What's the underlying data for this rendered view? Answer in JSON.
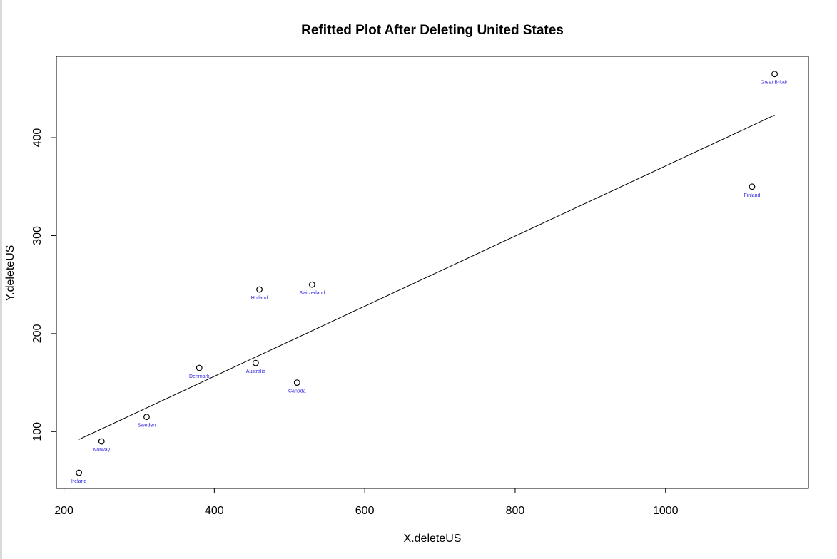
{
  "chart_data": {
    "type": "scatter",
    "title": "Refitted Plot After Deleting United States",
    "xlabel": "X.deleteUS",
    "ylabel": "Y.deleteUS",
    "xlim": [
      190,
      1190
    ],
    "ylim": [
      42,
      483
    ],
    "x_ticks": [
      200,
      400,
      600,
      800,
      1000
    ],
    "y_ticks": [
      100,
      200,
      300,
      400
    ],
    "grid": false,
    "point_label_color": "#2b1fe0",
    "points": [
      {
        "label": "Ireland",
        "x": 220,
        "y": 58
      },
      {
        "label": "Norway",
        "x": 250,
        "y": 90
      },
      {
        "label": "Sweden",
        "x": 310,
        "y": 115
      },
      {
        "label": "Denmark",
        "x": 380,
        "y": 165
      },
      {
        "label": "Australia",
        "x": 455,
        "y": 170
      },
      {
        "label": "Holland",
        "x": 460,
        "y": 245
      },
      {
        "label": "Canada",
        "x": 510,
        "y": 150
      },
      {
        "label": "Switzerland",
        "x": 530,
        "y": 250
      },
      {
        "label": "Finland",
        "x": 1115,
        "y": 350
      },
      {
        "label": "Great Britain",
        "x": 1145,
        "y": 465
      }
    ],
    "fit_line": {
      "x1": 220,
      "y1": 92,
      "x2": 1145,
      "y2": 423
    }
  }
}
